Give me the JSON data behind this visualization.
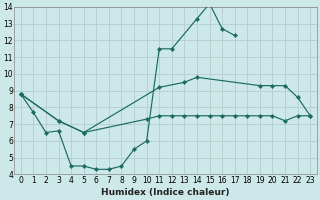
{
  "xlabel": "Humidex (Indice chaleur)",
  "bg_color": "#cde8e8",
  "grid_color": "#b8d0d0",
  "line_color": "#1a6b60",
  "xlim": [
    -0.5,
    23.5
  ],
  "ylim": [
    4,
    14
  ],
  "xticks": [
    0,
    1,
    2,
    3,
    4,
    5,
    6,
    7,
    8,
    9,
    10,
    11,
    12,
    13,
    14,
    15,
    16,
    17,
    18,
    19,
    20,
    21,
    22,
    23
  ],
  "yticks": [
    4,
    5,
    6,
    7,
    8,
    9,
    10,
    11,
    12,
    13,
    14
  ],
  "line1_x": [
    0,
    1,
    2,
    3,
    4,
    5,
    6,
    7,
    8,
    9,
    10,
    11,
    12,
    14,
    15,
    16,
    17
  ],
  "line1_y": [
    8.8,
    7.7,
    6.5,
    6.6,
    4.5,
    4.5,
    4.3,
    4.3,
    4.5,
    5.5,
    6.0,
    11.5,
    11.5,
    13.3,
    14.2,
    12.7,
    12.3
  ],
  "line2_x": [
    0,
    3,
    5,
    11,
    13,
    14,
    19,
    20,
    21,
    22,
    23
  ],
  "line2_y": [
    8.8,
    7.2,
    6.5,
    9.2,
    9.5,
    9.8,
    9.3,
    9.3,
    9.3,
    8.6,
    7.5
  ],
  "line3_x": [
    0,
    3,
    5,
    10,
    11,
    12,
    13,
    14,
    15,
    16,
    17,
    18,
    19,
    20,
    21,
    22,
    23
  ],
  "line3_y": [
    8.8,
    7.2,
    6.5,
    7.3,
    7.5,
    7.5,
    7.5,
    7.5,
    7.5,
    7.5,
    7.5,
    7.5,
    7.5,
    7.5,
    7.2,
    7.5,
    7.5
  ]
}
